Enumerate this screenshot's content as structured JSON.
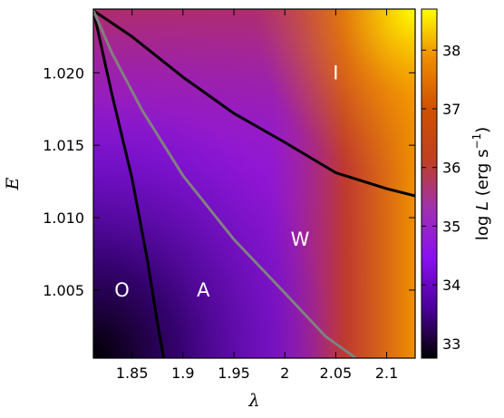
{
  "chart_data": {
    "type": "heatmap",
    "xlabel": "λ",
    "ylabel": "E",
    "xlim": [
      1.812,
      2.128
    ],
    "ylim": [
      1.0003,
      1.0244
    ],
    "x_ticks": [
      1.85,
      1.9,
      1.95,
      2.0,
      2.05,
      2.1
    ],
    "x_tick_labels": [
      "1.85",
      "1.9",
      "1.95",
      "2",
      "2.05",
      "2.1"
    ],
    "y_ticks": [
      1.005,
      1.01,
      1.015,
      1.02
    ],
    "y_tick_labels": [
      "1.005",
      "1.010",
      "1.015",
      "1.020"
    ],
    "colorbar": {
      "label_main": "log ",
      "label_var": "L",
      "label_unit": " (erg s",
      "label_exp": "−1",
      "label_close": ")",
      "range": [
        32.75,
        38.7
      ],
      "ticks": [
        33,
        34,
        35,
        36,
        37,
        38
      ],
      "tick_labels": [
        "33",
        "34",
        "35",
        "36",
        "37",
        "38"
      ],
      "colormap": "gnuplot",
      "colors": [
        "#000000",
        "#4a0099",
        "#8a0ff0",
        "#a030b0",
        "#c04020",
        "#d05000",
        "#ee8a00",
        "#ffff00"
      ]
    },
    "boundary_curves": [
      {
        "color": "#000000",
        "points": [
          [
            1.812,
            1.0243
          ],
          [
            1.83,
            1.0186
          ],
          [
            1.85,
            1.0127
          ],
          [
            1.865,
            1.0071
          ],
          [
            1.875,
            1.0027
          ],
          [
            1.881,
            1.0003
          ]
        ]
      },
      {
        "color": "#000000",
        "points": [
          [
            1.812,
            1.0243
          ],
          [
            1.85,
            1.0225
          ],
          [
            1.9,
            1.0197
          ],
          [
            1.95,
            1.0172
          ],
          [
            2.0,
            1.0152
          ],
          [
            2.05,
            1.0131
          ],
          [
            2.1,
            1.012
          ],
          [
            2.128,
            1.0115
          ]
        ]
      },
      {
        "color": "#808080",
        "points": [
          [
            1.812,
            1.0243
          ],
          [
            1.83,
            1.0214
          ],
          [
            1.86,
            1.0174
          ],
          [
            1.9,
            1.0129
          ],
          [
            1.95,
            1.0085
          ],
          [
            2.0,
            1.0048
          ],
          [
            2.04,
            1.0018
          ],
          [
            2.07,
            1.0003
          ]
        ]
      }
    ],
    "regions": [
      {
        "label": "I",
        "x": 2.05,
        "y": 1.02
      },
      {
        "label": "W",
        "x": 2.015,
        "y": 1.0085
      },
      {
        "label": "O",
        "x": 1.84,
        "y": 1.005
      },
      {
        "label": "A",
        "x": 1.92,
        "y": 1.005
      }
    ]
  }
}
